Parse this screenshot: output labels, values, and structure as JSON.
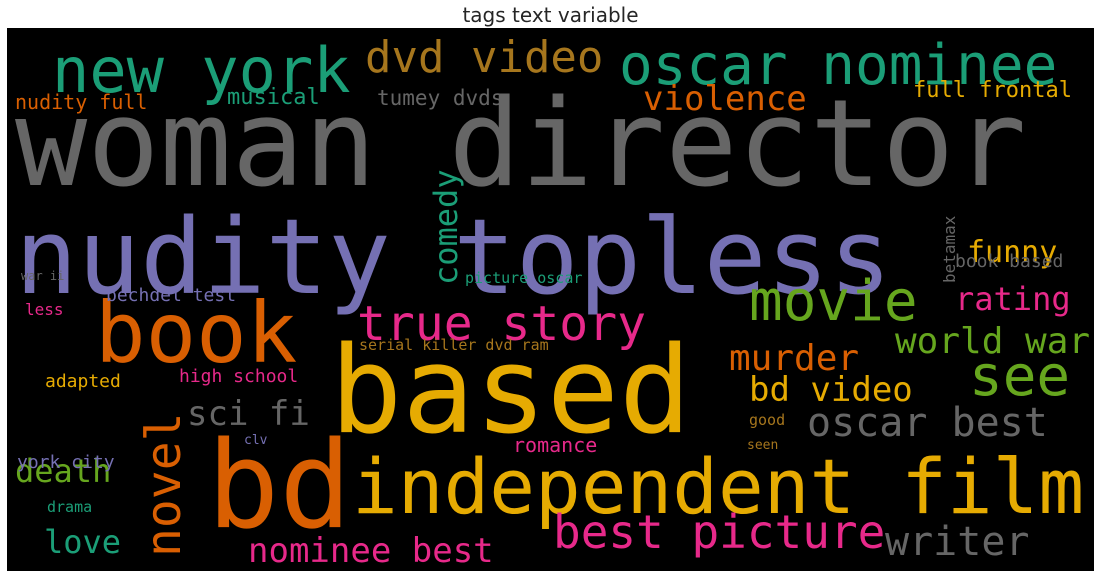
{
  "title": "tags text variable",
  "chart_data": {
    "type": "wordcloud",
    "title": "tags text variable",
    "background": "#000000",
    "colormap": [
      "#1b9e77",
      "#d95f02",
      "#7570b3",
      "#e7298a",
      "#66a61e",
      "#e6ab02",
      "#a6761d",
      "#666666"
    ],
    "words": [
      {
        "text": "woman director",
        "color": "#666666"
      },
      {
        "text": "nudity topless",
        "color": "#7570b3"
      },
      {
        "text": "based",
        "color": "#e6ab02"
      },
      {
        "text": "bd",
        "color": "#d95f02"
      },
      {
        "text": "book",
        "color": "#d95f02"
      },
      {
        "text": "independent film",
        "color": "#e6ab02"
      },
      {
        "text": "new york",
        "color": "#1b9e77"
      },
      {
        "text": "oscar nominee",
        "color": "#1b9e77"
      },
      {
        "text": "dvd video",
        "color": "#a6761d"
      },
      {
        "text": "movie",
        "color": "#66a61e"
      },
      {
        "text": "see",
        "color": "#66a61e"
      },
      {
        "text": "true story",
        "color": "#e7298a"
      },
      {
        "text": "best picture",
        "color": "#e7298a"
      },
      {
        "text": "novel",
        "color": "#d95f02"
      },
      {
        "text": "oscar best",
        "color": "#666666"
      },
      {
        "text": "writer",
        "color": "#666666"
      },
      {
        "text": "nominee best",
        "color": "#e7298a"
      },
      {
        "text": "comedy",
        "color": "#1b9e77"
      },
      {
        "text": "murder",
        "color": "#d95f02"
      },
      {
        "text": "world war",
        "color": "#66a61e"
      },
      {
        "text": "bd video",
        "color": "#e6ab02"
      },
      {
        "text": "sci fi",
        "color": "#666666"
      },
      {
        "text": "violence",
        "color": "#d95f02"
      },
      {
        "text": "rating",
        "color": "#e7298a"
      },
      {
        "text": "funny",
        "color": "#e6ab02"
      },
      {
        "text": "death",
        "color": "#66a61e"
      },
      {
        "text": "love",
        "color": "#1b9e77"
      },
      {
        "text": "full frontal",
        "color": "#e6ab02"
      },
      {
        "text": "musical",
        "color": "#1b9e77"
      },
      {
        "text": "tumey dvds",
        "color": "#666666"
      },
      {
        "text": "nudity full",
        "color": "#d95f02"
      },
      {
        "text": "romance",
        "color": "#e7298a"
      },
      {
        "text": "bechdel test",
        "color": "#7570b3"
      },
      {
        "text": "high school",
        "color": "#e7298a"
      },
      {
        "text": "adapted",
        "color": "#e6ab02"
      },
      {
        "text": "york city",
        "color": "#7570b3"
      },
      {
        "text": "book based",
        "color": "#666666"
      },
      {
        "text": "betamax",
        "color": "#666666"
      },
      {
        "text": "picture oscar",
        "color": "#1b9e77"
      },
      {
        "text": "serial killer dvd ram",
        "color": "#a6761d"
      },
      {
        "text": "less",
        "color": "#e7298a"
      },
      {
        "text": "drama",
        "color": "#1b9e77"
      },
      {
        "text": "good",
        "color": "#a6761d"
      },
      {
        "text": "seen",
        "color": "#a6761d"
      },
      {
        "text": "clv",
        "color": "#7570b3"
      },
      {
        "text": "war ii",
        "color": "#666666"
      }
    ]
  }
}
